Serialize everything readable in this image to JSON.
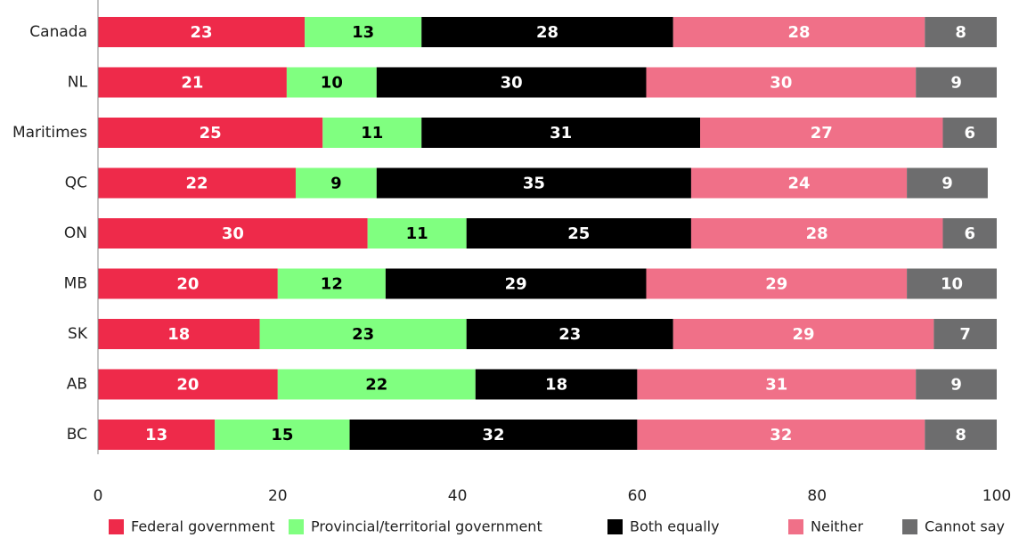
{
  "chart_data": {
    "type": "stacked_barh",
    "categories": [
      "Canada",
      "NL",
      "Maritimes",
      "QC",
      "ON",
      "MB",
      "SK",
      "AB",
      "BC"
    ],
    "series": [
      {
        "name": "Federal government",
        "color": "#ee2a4a",
        "label_color": "#ffffff",
        "values": [
          23,
          21,
          25,
          22,
          30,
          20,
          18,
          20,
          13
        ]
      },
      {
        "name": "Provincial/territorial government",
        "color": "#80ff80",
        "label_color": "#000000",
        "values": [
          13,
          10,
          11,
          9,
          11,
          12,
          23,
          22,
          15
        ]
      },
      {
        "name": "Both equally",
        "color": "#000000",
        "label_color": "#ffffff",
        "values": [
          28,
          30,
          31,
          35,
          25,
          29,
          23,
          18,
          32
        ]
      },
      {
        "name": "Neither",
        "color": "#f07088",
        "label_color": "#ffffff",
        "values": [
          28,
          30,
          27,
          24,
          28,
          29,
          29,
          31,
          32
        ]
      },
      {
        "name": "Cannot say",
        "color": "#6d6d6e",
        "label_color": "#ffffff",
        "values": [
          8,
          9,
          6,
          9,
          6,
          10,
          7,
          9,
          8
        ]
      }
    ],
    "xlim": [
      0,
      100
    ],
    "xticks": [
      0,
      20,
      40,
      60,
      80,
      100
    ],
    "grid": false,
    "legend": "bottom"
  }
}
